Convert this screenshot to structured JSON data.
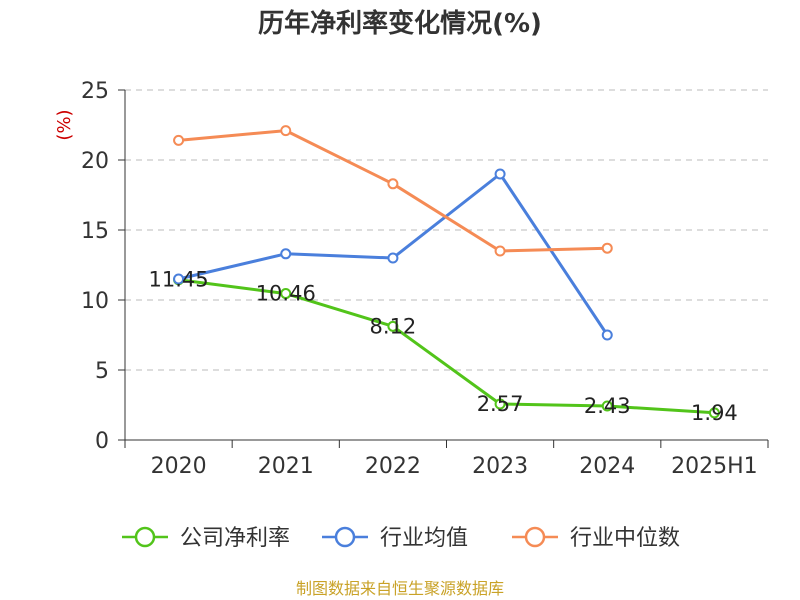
{
  "chart_data": {
    "type": "line",
    "title": "历年净利率变化情况(%)",
    "ylabel": "(%)",
    "categories": [
      "2020",
      "2021",
      "2022",
      "2023",
      "2024",
      "2025H1"
    ],
    "yticks": [
      "0",
      "5",
      "10",
      "15",
      "20",
      "25"
    ],
    "ylim": [
      0,
      25
    ],
    "grid": true,
    "legend_position": "bottom",
    "series": [
      {
        "name": "公司净利率",
        "color": "#52c41a",
        "values": [
          11.45,
          10.46,
          8.12,
          2.57,
          2.43,
          1.94
        ],
        "labels": [
          "11.45",
          "10.46",
          "8.12",
          "2.57",
          "2.43",
          "1.94"
        ]
      },
      {
        "name": "行业均值",
        "color": "#4a7fdc",
        "values": [
          11.5,
          13.3,
          13.0,
          19.0,
          7.5,
          null
        ]
      },
      {
        "name": "行业中位数",
        "color": "#f58b55",
        "values": [
          21.4,
          22.1,
          18.3,
          13.5,
          13.7,
          null
        ]
      }
    ]
  },
  "source": "制图数据来自恒生聚源数据库"
}
